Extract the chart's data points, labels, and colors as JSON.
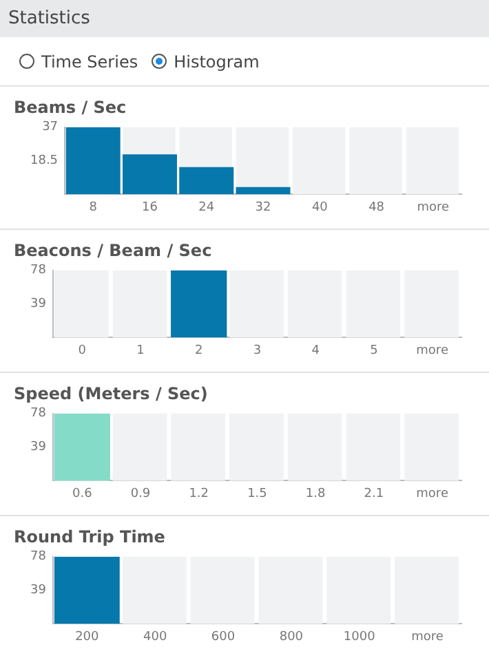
{
  "chart_data": [
    {
      "type": "other",
      "title": "Statistics",
      "annotations": [
        "Time Series",
        "Histogram"
      ]
    },
    {
      "type": "bar",
      "title": "Beams / Sec",
      "categories": [
        "8",
        "16",
        "24",
        "32",
        "40",
        "48",
        "more"
      ],
      "values": [
        37,
        22,
        15,
        4,
        0,
        0,
        0
      ],
      "color": "#0778ab",
      "ylim": [
        0,
        37
      ],
      "yticks": [
        18.5,
        37
      ]
    },
    {
      "type": "bar",
      "title": "Beacons / Beam / Sec",
      "categories": [
        "0",
        "1",
        "2",
        "3",
        "4",
        "5",
        "more"
      ],
      "values": [
        0,
        0,
        78,
        0,
        0,
        0,
        0
      ],
      "color": "#0778ab",
      "ylim": [
        0,
        78
      ],
      "yticks": [
        39,
        78
      ]
    },
    {
      "type": "bar",
      "title": "Speed (Meters / Sec)",
      "categories": [
        "0.6",
        "0.9",
        "1.2",
        "1.5",
        "1.8",
        "2.1",
        "more"
      ],
      "values": [
        78,
        0,
        0,
        0,
        0,
        0,
        0
      ],
      "color": "#83dbc8",
      "ylim": [
        0,
        78
      ],
      "yticks": [
        39,
        78
      ]
    },
    {
      "type": "bar",
      "title": "Round Trip Time",
      "categories": [
        "200",
        "400",
        "600",
        "800",
        "1000",
        "more"
      ],
      "values": [
        78,
        0,
        0,
        0,
        0,
        0
      ],
      "color": "#0778ab",
      "ylim": [
        0,
        78
      ],
      "yticks": [
        39,
        78
      ]
    }
  ]
}
